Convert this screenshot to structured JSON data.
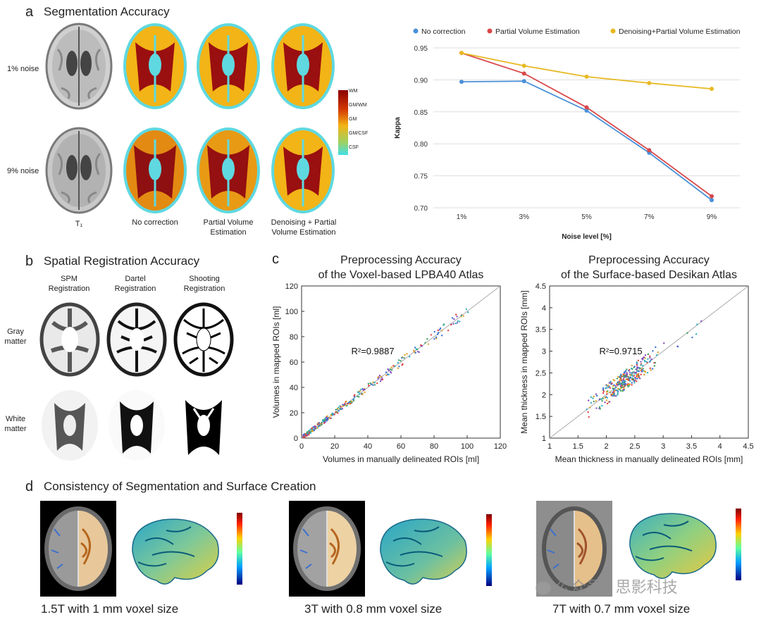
{
  "panel_a": {
    "letter": "a",
    "title": "Segmentation Accuracy",
    "row_labels": [
      "1% noise",
      "9% noise"
    ],
    "column_labels": [
      "T₁",
      "No correction",
      "Partial Volume\nEstimation",
      "Denoising + Partial\nVolume Estimation"
    ],
    "colorbar_labels": [
      "WM",
      "GM/WM",
      "GM",
      "GM/CSF",
      "CSF"
    ]
  },
  "panel_b": {
    "letter": "b",
    "title": "Spatial Registration Accuracy",
    "column_labels": [
      "SPM\nRegistration",
      "Dartel\nRegistration",
      "Shooting\nRegistration"
    ],
    "row_labels": [
      "Gray\nmatter",
      "White\nmatter"
    ]
  },
  "panel_c": {
    "letter": "c"
  },
  "panel_d": {
    "letter": "d",
    "title": "Consistency of Segmentation and Surface Creation",
    "captions": [
      "1.5T with 1 mm voxel size",
      "3T with 0.8 mm voxel size",
      "7T with 0.7 mm voxel size"
    ]
  },
  "watermark": "公众号 · 思影科技",
  "colors": {
    "blue": "#4a90d9",
    "red": "#d9484a",
    "yellow": "#e8b923"
  },
  "chart_data": [
    {
      "type": "line",
      "title": "",
      "xlabel": "Noise level [%]",
      "ylabel": "Kappa",
      "categories": [
        "1%",
        "3%",
        "5%",
        "7%",
        "9%"
      ],
      "yticks": [
        "0.95",
        "0.90",
        "0.85",
        "0.80",
        "0.75",
        "0.70"
      ],
      "ylim": [
        0.7,
        0.95
      ],
      "series": [
        {
          "name": "No correction",
          "color": "#4a90d9",
          "values": [
            0.897,
            0.898,
            0.852,
            0.786,
            0.712
          ]
        },
        {
          "name": "Partial Volume Estimation",
          "color": "#d9484a",
          "values": [
            0.942,
            0.91,
            0.857,
            0.79,
            0.718
          ]
        },
        {
          "name": "Denoising+Partial Volume Estimation",
          "color": "#e8b923",
          "values": [
            0.942,
            0.922,
            0.905,
            0.895,
            0.886
          ]
        }
      ],
      "grid": true,
      "legend": "top"
    },
    {
      "type": "scatter",
      "title": "Preprocessing Accuracy\nof the Voxel-based LPBA40 Atlas",
      "xlabel": "Volumes in manually delineated ROIs [ml]",
      "ylabel": "Volumes in mapped ROIs [ml]",
      "xticks": [
        "0",
        "20",
        "40",
        "60",
        "80",
        "100",
        "120"
      ],
      "yticks": [
        "0",
        "20",
        "40",
        "60",
        "80",
        "100",
        "120"
      ],
      "xlim": [
        0,
        120
      ],
      "ylim": [
        0,
        120
      ],
      "annotation": "R²=0.9887"
    },
    {
      "type": "scatter",
      "title": "Preprocessing Accuracy\nof the Surface-based Desikan Atlas",
      "xlabel": "Mean thickness in manually delineated ROIs [mm]",
      "ylabel": "Mean thickness in mapped ROIs [mm]",
      "xticks": [
        "1",
        "1.5",
        "2",
        "2.5",
        "3",
        "3.5",
        "4",
        "4.5"
      ],
      "yticks": [
        "1",
        "1.5",
        "2",
        "2.5",
        "3",
        "3.5",
        "4",
        "4.5"
      ],
      "xlim": [
        1,
        4.5
      ],
      "ylim": [
        1,
        4.5
      ],
      "annotation": "R²=0.9715"
    }
  ]
}
